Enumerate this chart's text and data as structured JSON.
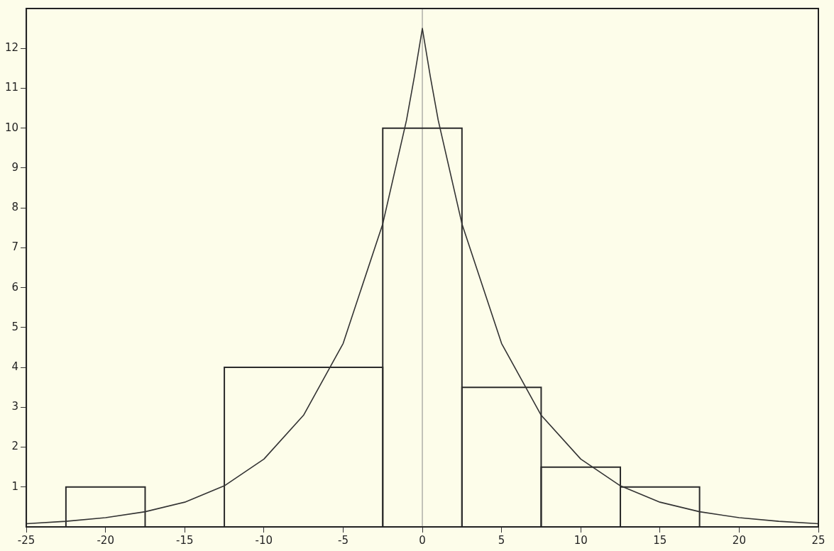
{
  "chart_data": {
    "type": "histogram",
    "bins": [
      -22.5,
      -17.5,
      -12.5,
      -2.5,
      2.5,
      7.5,
      12.5,
      17.5
    ],
    "values": [
      1,
      0,
      4,
      10,
      3.5,
      1.5,
      1
    ],
    "color": "#2b2b2b",
    "xlim": [
      -25,
      25
    ],
    "ylim": [
      0,
      13
    ],
    "xticks": [
      -25,
      -20,
      -15,
      -10,
      -5,
      0,
      5,
      10,
      15,
      20,
      25
    ],
    "yticks": [
      1,
      2,
      3,
      4,
      5,
      6,
      7,
      8,
      9,
      10,
      11,
      12
    ],
    "ref_lines": [
      {
        "axis": "x",
        "value": 0,
        "color": "#8a8a8a"
      }
    ],
    "series": [
      {
        "type": "line",
        "color": "#333333",
        "x": [
          -25,
          -22.5,
          -20,
          -17.5,
          -15,
          -12.5,
          -10,
          -7.5,
          -5,
          -2.5,
          -1,
          -0.5,
          0,
          0.5,
          1,
          2.5,
          5,
          7.5,
          10,
          12.5,
          15,
          17.5,
          20,
          22.5,
          25
        ],
        "values": [
          0.08,
          0.14,
          0.23,
          0.38,
          0.62,
          1.03,
          1.7,
          2.8,
          4.6,
          7.6,
          10.2,
          11.3,
          12.5,
          11.3,
          10.2,
          7.6,
          4.6,
          2.8,
          1.7,
          1.03,
          0.62,
          0.38,
          0.23,
          0.14,
          0.08
        ]
      }
    ]
  }
}
